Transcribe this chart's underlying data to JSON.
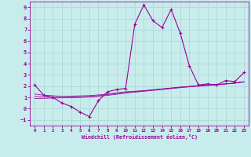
{
  "xlabel": "Windchill (Refroidissement éolien,°C)",
  "bg_color": "#c8ecec",
  "grid_color": "#b0d8d8",
  "line_color": "#990099",
  "xlim": [
    -0.5,
    23.5
  ],
  "ylim": [
    -1.5,
    9.5
  ],
  "xticks": [
    0,
    1,
    2,
    3,
    4,
    5,
    6,
    7,
    8,
    9,
    10,
    11,
    12,
    13,
    14,
    15,
    16,
    17,
    18,
    19,
    20,
    21,
    22,
    23
  ],
  "yticks": [
    -1,
    0,
    1,
    2,
    3,
    4,
    5,
    6,
    7,
    8,
    9
  ],
  "x_data": [
    0,
    1,
    2,
    3,
    4,
    5,
    6,
    7,
    8,
    9,
    10,
    11,
    12,
    13,
    14,
    15,
    16,
    17,
    18,
    19,
    20,
    21,
    22,
    23
  ],
  "y_main": [
    2.1,
    1.2,
    1.0,
    0.5,
    0.2,
    -0.3,
    -0.7,
    0.7,
    1.5,
    1.7,
    1.8,
    7.5,
    9.2,
    7.8,
    7.2,
    8.8,
    6.7,
    3.8,
    2.1,
    2.2,
    2.1,
    2.5,
    2.4,
    3.2
  ],
  "y_reg1": [
    1.3,
    1.2,
    1.15,
    1.1,
    1.12,
    1.14,
    1.16,
    1.22,
    1.3,
    1.4,
    1.5,
    1.55,
    1.6,
    1.68,
    1.76,
    1.84,
    1.92,
    1.98,
    2.05,
    2.1,
    2.15,
    2.2,
    2.28,
    2.4
  ],
  "y_reg2": [
    1.1,
    1.05,
    1.02,
    1.0,
    1.02,
    1.05,
    1.08,
    1.15,
    1.25,
    1.35,
    1.45,
    1.52,
    1.58,
    1.66,
    1.74,
    1.82,
    1.9,
    1.96,
    2.02,
    2.08,
    2.14,
    2.2,
    2.28,
    2.38
  ],
  "y_reg3": [
    0.9,
    0.92,
    0.94,
    0.96,
    0.98,
    1.0,
    1.04,
    1.1,
    1.18,
    1.28,
    1.38,
    1.46,
    1.54,
    1.62,
    1.7,
    1.78,
    1.86,
    1.93,
    2.0,
    2.06,
    2.12,
    2.18,
    2.26,
    2.36
  ]
}
